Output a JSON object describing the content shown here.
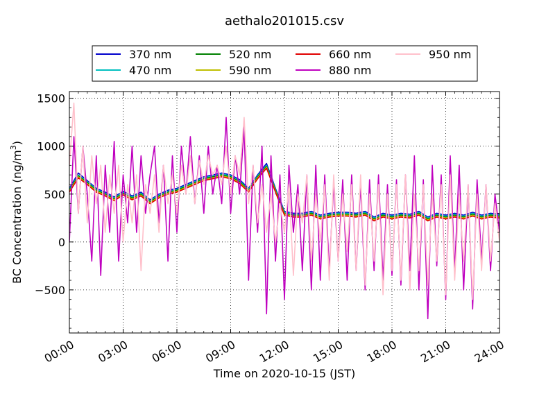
{
  "chart_data": {
    "type": "line",
    "title": "aethalo201015.csv",
    "xlabel": "Time on 2020-10-15 (JST)",
    "ylabel_main": "BC Concentration (ng/m",
    "ylabel_sup": "3",
    "ylabel_tail": ")",
    "xlim_hours": [
      0,
      24
    ],
    "ylim": [
      -950,
      1570
    ],
    "x_ticks": [
      {
        "hour": 0,
        "label": "00:00"
      },
      {
        "hour": 3,
        "label": "03:00"
      },
      {
        "hour": 6,
        "label": "06:00"
      },
      {
        "hour": 9,
        "label": "09:00"
      },
      {
        "hour": 12,
        "label": "12:00"
      },
      {
        "hour": 15,
        "label": "15:00"
      },
      {
        "hour": 18,
        "label": "18:00"
      },
      {
        "hour": 21,
        "label": "21:00"
      },
      {
        "hour": 24,
        "label": "24:00"
      }
    ],
    "y_ticks": [
      {
        "value": 1500,
        "label": "1500"
      },
      {
        "value": 1000,
        "label": "1000"
      },
      {
        "value": 500,
        "label": "500"
      },
      {
        "value": 0,
        "label": "0"
      },
      {
        "value": -500,
        "label": "−500"
      }
    ],
    "grid": true,
    "legend_position": "top-center",
    "series": [
      {
        "name": "370 nm",
        "color": "#0000cc",
        "x": [
          0.0,
          0.5,
          1.0,
          1.5,
          2.0,
          2.5,
          3.0,
          3.5,
          4.0,
          4.5,
          5.0,
          5.5,
          6.0,
          6.5,
          7.0,
          7.5,
          8.0,
          8.5,
          9.0,
          9.5,
          10.0,
          10.5,
          11.0,
          11.5,
          12.0,
          12.5,
          13.0,
          13.5,
          14.0,
          14.5,
          15.0,
          15.5,
          16.0,
          16.5,
          17.0,
          17.5,
          18.0,
          18.5,
          19.0,
          19.5,
          20.0,
          20.5,
          21.0,
          21.5,
          22.0,
          22.5,
          23.0,
          23.5,
          24.0
        ],
        "y": [
          560,
          720,
          640,
          560,
          520,
          470,
          530,
          480,
          520,
          440,
          500,
          540,
          560,
          600,
          640,
          680,
          700,
          720,
          700,
          650,
          560,
          700,
          820,
          560,
          320,
          300,
          300,
          320,
          280,
          300,
          310,
          310,
          300,
          320,
          260,
          300,
          280,
          300,
          290,
          320,
          260,
          300,
          280,
          300,
          280,
          310,
          280,
          300,
          290
        ]
      },
      {
        "name": "470 nm",
        "color": "#00bfbf",
        "x": [
          0.0,
          0.5,
          1.0,
          1.5,
          2.0,
          2.5,
          3.0,
          3.5,
          4.0,
          4.5,
          5.0,
          5.5,
          6.0,
          6.5,
          7.0,
          7.5,
          8.0,
          8.5,
          9.0,
          9.5,
          10.0,
          10.5,
          11.0,
          11.5,
          12.0,
          12.5,
          13.0,
          13.5,
          14.0,
          14.5,
          15.0,
          15.5,
          16.0,
          16.5,
          17.0,
          17.5,
          18.0,
          18.5,
          19.0,
          19.5,
          20.0,
          20.5,
          21.0,
          21.5,
          22.0,
          22.5,
          23.0,
          23.5,
          24.0
        ],
        "y": [
          550,
          700,
          630,
          550,
          510,
          460,
          520,
          470,
          510,
          430,
          490,
          530,
          550,
          590,
          630,
          670,
          690,
          710,
          690,
          640,
          550,
          690,
          800,
          550,
          310,
          290,
          290,
          310,
          270,
          290,
          300,
          300,
          290,
          310,
          250,
          290,
          270,
          290,
          280,
          310,
          250,
          290,
          270,
          290,
          270,
          300,
          270,
          290,
          280
        ]
      },
      {
        "name": "520 nm",
        "color": "#008000",
        "x": [
          0.0,
          0.5,
          1.0,
          1.5,
          2.0,
          2.5,
          3.0,
          3.5,
          4.0,
          4.5,
          5.0,
          5.5,
          6.0,
          6.5,
          7.0,
          7.5,
          8.0,
          8.5,
          9.0,
          9.5,
          10.0,
          10.5,
          11.0,
          11.5,
          12.0,
          12.5,
          13.0,
          13.5,
          14.0,
          14.5,
          15.0,
          15.5,
          16.0,
          16.5,
          17.0,
          17.5,
          18.0,
          18.5,
          19.0,
          19.5,
          20.0,
          20.5,
          21.0,
          21.5,
          22.0,
          22.5,
          23.0,
          23.5,
          24.0
        ],
        "y": [
          540,
          690,
          620,
          540,
          500,
          450,
          510,
          460,
          500,
          420,
          480,
          520,
          540,
          580,
          620,
          660,
          680,
          700,
          680,
          630,
          540,
          680,
          790,
          540,
          300,
          280,
          280,
          300,
          260,
          280,
          290,
          290,
          280,
          300,
          240,
          280,
          260,
          280,
          270,
          300,
          240,
          280,
          260,
          280,
          260,
          290,
          260,
          280,
          270
        ]
      },
      {
        "name": "590 nm",
        "color": "#bfbf00",
        "x": [
          0.0,
          0.5,
          1.0,
          1.5,
          2.0,
          2.5,
          3.0,
          3.5,
          4.0,
          4.5,
          5.0,
          5.5,
          6.0,
          6.5,
          7.0,
          7.5,
          8.0,
          8.5,
          9.0,
          9.5,
          10.0,
          10.5,
          11.0,
          11.5,
          12.0,
          12.5,
          13.0,
          13.5,
          14.0,
          14.5,
          15.0,
          15.5,
          16.0,
          16.5,
          17.0,
          17.5,
          18.0,
          18.5,
          19.0,
          19.5,
          20.0,
          20.5,
          21.0,
          21.5,
          22.0,
          22.5,
          23.0,
          23.5,
          24.0
        ],
        "y": [
          530,
          680,
          610,
          530,
          490,
          440,
          500,
          450,
          490,
          410,
          470,
          510,
          530,
          570,
          610,
          650,
          670,
          690,
          670,
          620,
          530,
          670,
          780,
          530,
          290,
          270,
          270,
          290,
          250,
          270,
          280,
          280,
          270,
          290,
          230,
          270,
          250,
          270,
          260,
          290,
          230,
          270,
          250,
          270,
          250,
          280,
          250,
          270,
          260
        ]
      },
      {
        "name": "660 nm",
        "color": "#e00000",
        "x": [
          0.0,
          0.5,
          1.0,
          1.5,
          2.0,
          2.5,
          3.0,
          3.5,
          4.0,
          4.5,
          5.0,
          5.5,
          6.0,
          6.5,
          7.0,
          7.5,
          8.0,
          8.5,
          9.0,
          9.5,
          10.0,
          10.5,
          11.0,
          11.5,
          12.0,
          12.5,
          13.0,
          13.5,
          14.0,
          14.5,
          15.0,
          15.5,
          16.0,
          16.5,
          17.0,
          17.5,
          18.0,
          18.5,
          19.0,
          19.5,
          20.0,
          20.5,
          21.0,
          21.5,
          22.0,
          22.5,
          23.0,
          23.5,
          24.0
        ],
        "y": [
          520,
          670,
          600,
          520,
          480,
          430,
          490,
          440,
          480,
          400,
          460,
          500,
          520,
          560,
          600,
          640,
          660,
          680,
          660,
          610,
          520,
          660,
          770,
          520,
          280,
          260,
          260,
          280,
          240,
          260,
          270,
          270,
          260,
          280,
          220,
          260,
          240,
          260,
          250,
          280,
          220,
          260,
          240,
          260,
          240,
          270,
          240,
          260,
          250
        ]
      },
      {
        "name": "880 nm",
        "color": "#bf00bf",
        "x": [
          0.0,
          0.25,
          0.5,
          0.75,
          1.0,
          1.25,
          1.5,
          1.75,
          2.0,
          2.25,
          2.5,
          2.75,
          3.0,
          3.25,
          3.5,
          3.75,
          4.0,
          4.25,
          4.5,
          4.75,
          5.0,
          5.25,
          5.5,
          5.75,
          6.0,
          6.25,
          6.5,
          6.75,
          7.0,
          7.25,
          7.5,
          7.75,
          8.0,
          8.25,
          8.5,
          8.75,
          9.0,
          9.25,
          9.5,
          9.75,
          10.0,
          10.25,
          10.5,
          10.75,
          11.0,
          11.25,
          11.5,
          11.75,
          12.0,
          12.25,
          12.5,
          12.75,
          13.0,
          13.25,
          13.5,
          13.75,
          14.0,
          14.25,
          14.5,
          14.75,
          15.0,
          15.25,
          15.5,
          15.75,
          16.0,
          16.25,
          16.5,
          16.75,
          17.0,
          17.25,
          17.5,
          17.75,
          18.0,
          18.25,
          18.5,
          18.75,
          19.0,
          19.25,
          19.5,
          19.75,
          20.0,
          20.25,
          20.5,
          20.75,
          21.0,
          21.25,
          21.5,
          21.75,
          22.0,
          22.25,
          22.5,
          22.75,
          23.0,
          23.25,
          23.5,
          23.75,
          24.0
        ],
        "y": [
          0,
          1100,
          300,
          1000,
          500,
          -200,
          900,
          -350,
          800,
          100,
          1050,
          -200,
          700,
          200,
          1000,
          100,
          900,
          300,
          700,
          1000,
          200,
          800,
          -200,
          900,
          100,
          1000,
          500,
          1100,
          400,
          900,
          300,
          1000,
          500,
          800,
          400,
          1300,
          300,
          900,
          500,
          1200,
          -400,
          800,
          100,
          1000,
          -750,
          900,
          -200,
          700,
          -600,
          800,
          100,
          600,
          -300,
          700,
          -500,
          800,
          -400,
          700,
          -300,
          600,
          -200,
          650,
          -400,
          700,
          -300,
          600,
          -500,
          650,
          -300,
          700,
          -400,
          600,
          -350,
          650,
          -450,
          700,
          -300,
          900,
          -500,
          650,
          -800,
          800,
          -250,
          700,
          -600,
          900,
          -300,
          800,
          -500,
          600,
          -700,
          650,
          -200,
          600,
          -300,
          500,
          100
        ]
      },
      {
        "name": "950 nm",
        "color": "#ffc0cb",
        "x": [
          0.0,
          0.25,
          0.5,
          0.75,
          1.0,
          1.25,
          1.5,
          1.75,
          2.0,
          2.25,
          2.5,
          2.75,
          3.0,
          3.25,
          3.5,
          3.75,
          4.0,
          4.25,
          4.5,
          4.75,
          5.0,
          5.25,
          5.5,
          5.75,
          6.0,
          6.25,
          6.5,
          6.75,
          7.0,
          7.25,
          7.5,
          7.75,
          8.0,
          8.25,
          8.5,
          8.75,
          9.0,
          9.25,
          9.5,
          9.75,
          10.0,
          10.25,
          10.5,
          10.75,
          11.0,
          11.25,
          11.5,
          11.75,
          12.0,
          12.25,
          12.5,
          12.75,
          13.0,
          13.25,
          13.5,
          13.75,
          14.0,
          14.25,
          14.5,
          14.75,
          15.0,
          15.25,
          15.5,
          15.75,
          16.0,
          16.25,
          16.5,
          16.75,
          17.0,
          17.25,
          17.5,
          17.75,
          18.0,
          18.25,
          18.5,
          18.75,
          19.0,
          19.25,
          19.5,
          19.75,
          20.0,
          20.25,
          20.5,
          20.75,
          21.0,
          21.25,
          21.5,
          21.75,
          22.0,
          22.25,
          22.5,
          22.75,
          23.0,
          23.25,
          23.5,
          23.75,
          24.0
        ],
        "y": [
          800,
          1450,
          300,
          1000,
          200,
          900,
          400,
          800,
          100,
          700,
          300,
          800,
          0,
          600,
          200,
          700,
          -300,
          600,
          300,
          700,
          100,
          800,
          400,
          700,
          300,
          800,
          500,
          900,
          400,
          850,
          600,
          900,
          700,
          800,
          600,
          1000,
          500,
          900,
          700,
          1300,
          400,
          800,
          200,
          600,
          100,
          500,
          0,
          400,
          100,
          600,
          -350,
          500,
          200,
          700,
          -200,
          500,
          0,
          600,
          -400,
          700,
          -200,
          500,
          -100,
          600,
          -300,
          700,
          -450,
          500,
          -200,
          600,
          -550,
          500,
          -300,
          600,
          -400,
          700,
          -500,
          500,
          -300,
          600,
          -450,
          500,
          -200,
          600,
          -550,
          700,
          -400,
          500,
          -200,
          600,
          -600,
          500,
          -300,
          600,
          -200,
          400,
          0
        ]
      }
    ]
  }
}
